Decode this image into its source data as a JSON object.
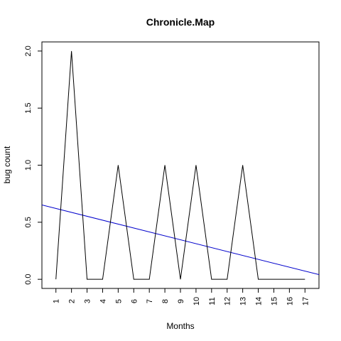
{
  "chart_data": {
    "type": "line",
    "title": "Chronicle.Map",
    "xlabel": "Months",
    "ylabel": "bug count",
    "x": [
      1,
      2,
      3,
      4,
      5,
      6,
      7,
      8,
      9,
      10,
      11,
      12,
      13,
      14,
      15,
      16,
      17
    ],
    "x_tick_labels": [
      "1",
      "2",
      "3",
      "4",
      "5",
      "6",
      "7",
      "8",
      "9",
      "10",
      "11",
      "12",
      "13",
      "14",
      "15",
      "16",
      "17"
    ],
    "series": [
      {
        "values": [
          0,
          2,
          0,
          0,
          1,
          0,
          0,
          1,
          0,
          1,
          0,
          0,
          1,
          0,
          0,
          0,
          0
        ],
        "color": "#000000"
      }
    ],
    "trend_line": {
      "intercept": 0.655,
      "slope": -0.0343,
      "color": "#0000cc"
    },
    "xlim": [
      0.1,
      17.9
    ],
    "ylim": [
      -0.08,
      2.08
    ],
    "y_ticks": [
      0,
      0.5,
      1,
      1.5,
      2
    ],
    "y_tick_labels": [
      "0.0",
      "0.5",
      "1.0",
      "1.5",
      "2.0"
    ],
    "grid": false
  }
}
